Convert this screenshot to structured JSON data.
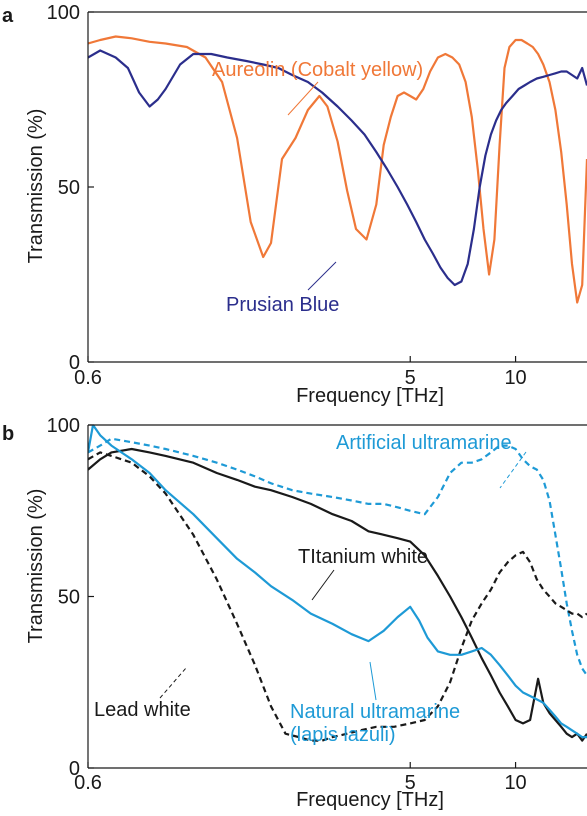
{
  "colors": {
    "orange": "#F07838",
    "navy": "#2B2E8C",
    "blue": "#1E9AD6",
    "black": "#1A1A1A"
  },
  "chart_data": [
    {
      "panel_label": "a",
      "type": "line",
      "xlabel": "Frequency [THz]",
      "ylabel": "Transmission (%)",
      "x_scale": "log",
      "xlim": [
        0.6,
        16
      ],
      "ylim": [
        0,
        100
      ],
      "x_ticks": [
        {
          "value": 0.6,
          "label": "0.6"
        },
        {
          "value": 5,
          "label": "5"
        },
        {
          "value": 10,
          "label": "10"
        }
      ],
      "y_ticks": [
        {
          "value": 0,
          "label": "0"
        },
        {
          "value": 50,
          "label": "50"
        },
        {
          "value": 100,
          "label": "100"
        }
      ],
      "series": [
        {
          "name": "Aureolin (Cobalt yellow)",
          "color": "#F07838",
          "dash": "solid",
          "x": [
            0.6,
            0.65,
            0.72,
            0.8,
            0.9,
            1.0,
            1.15,
            1.3,
            1.45,
            1.6,
            1.75,
            1.9,
            2.0,
            2.15,
            2.35,
            2.55,
            2.75,
            2.9,
            3.1,
            3.3,
            3.5,
            3.75,
            4.0,
            4.2,
            4.4,
            4.6,
            4.8,
            5.0,
            5.2,
            5.45,
            5.7,
            6.0,
            6.3,
            6.6,
            6.9,
            7.2,
            7.5,
            7.8,
            8.1,
            8.4,
            8.7,
            9.0,
            9.3,
            9.6,
            10.0,
            10.4,
            10.8,
            11.2,
            11.6,
            12.0,
            12.5,
            13.0,
            13.5,
            14.0,
            14.5,
            15.0,
            15.5,
            16.0
          ],
          "y": [
            91,
            92,
            93,
            92.5,
            91.5,
            91,
            90,
            87,
            80,
            64,
            40,
            30,
            34,
            58,
            64,
            72,
            76,
            73,
            63,
            49,
            38,
            35,
            45,
            62,
            70,
            76,
            77,
            76,
            75,
            78,
            83,
            87,
            88,
            87,
            85,
            80,
            70,
            55,
            38,
            25,
            35,
            62,
            84,
            90,
            92,
            92,
            91,
            90,
            88,
            85,
            80,
            72,
            60,
            45,
            28,
            17,
            22,
            58
          ]
        },
        {
          "name": "Prusian Blue",
          "color": "#2B2E8C",
          "dash": "solid",
          "x": [
            0.6,
            0.65,
            0.72,
            0.78,
            0.84,
            0.9,
            0.95,
            1.0,
            1.1,
            1.2,
            1.35,
            1.5,
            1.7,
            1.9,
            2.1,
            2.3,
            2.55,
            2.8,
            3.1,
            3.4,
            3.7,
            4.0,
            4.3,
            4.6,
            4.9,
            5.2,
            5.5,
            5.8,
            6.1,
            6.4,
            6.7,
            7.0,
            7.3,
            7.6,
            7.9,
            8.2,
            8.5,
            8.8,
            9.1,
            9.4,
            9.8,
            10.2,
            10.6,
            11.0,
            11.5,
            12.0,
            12.5,
            13.0,
            13.5,
            14.0,
            14.5,
            15.0,
            15.5,
            16.0
          ],
          "y": [
            87,
            89,
            87,
            84,
            77,
            73,
            75,
            78,
            85,
            88,
            88,
            87,
            86,
            85,
            84,
            82,
            80,
            77,
            73,
            69,
            65,
            60,
            55,
            50,
            45,
            40,
            35,
            31,
            27,
            24,
            22,
            23,
            28,
            38,
            50,
            59,
            65,
            69,
            72,
            74,
            76,
            78,
            79,
            80,
            81,
            81.5,
            82,
            82.5,
            83,
            83,
            82,
            81,
            84,
            79
          ]
        }
      ],
      "annotations": [
        {
          "text": "Aureolin (Cobalt yellow)",
          "color": "#F07838"
        },
        {
          "text": "Prusian Blue",
          "color": "#2B2E8C"
        }
      ]
    },
    {
      "panel_label": "b",
      "type": "line",
      "xlabel": "Frequency [THz]",
      "ylabel": "Transmission (%)",
      "x_scale": "log",
      "xlim": [
        0.6,
        16
      ],
      "ylim": [
        0,
        100
      ],
      "x_ticks": [
        {
          "value": 0.6,
          "label": "0.6"
        },
        {
          "value": 5,
          "label": "5"
        },
        {
          "value": 10,
          "label": "10"
        }
      ],
      "y_ticks": [
        {
          "value": 0,
          "label": "0"
        },
        {
          "value": 50,
          "label": "50"
        },
        {
          "value": 100,
          "label": "100"
        }
      ],
      "series": [
        {
          "name": "Artificial ultramarine",
          "color": "#1E9AD6",
          "dash": "dashed",
          "x": [
            0.6,
            0.65,
            0.7,
            0.8,
            0.9,
            1.0,
            1.2,
            1.4,
            1.6,
            1.8,
            2.0,
            2.3,
            2.6,
            3.0,
            3.4,
            3.8,
            4.2,
            4.6,
            5.0,
            5.5,
            6.0,
            6.5,
            7.0,
            7.5,
            8.0,
            8.5,
            9.0,
            9.5,
            10.0,
            10.5,
            11.0,
            11.5,
            12.0,
            12.5,
            13.0,
            13.5,
            14.0,
            14.5,
            15.0,
            15.5,
            16.0
          ],
          "y": [
            92,
            94,
            96,
            95,
            94,
            93,
            91,
            89,
            87,
            85,
            83,
            81,
            80,
            79,
            78,
            77,
            77,
            76,
            75,
            74,
            79,
            86,
            89,
            89,
            90,
            92,
            94,
            94,
            93,
            90,
            88,
            87,
            84,
            78,
            68,
            58,
            48,
            40,
            33,
            29,
            27
          ]
        },
        {
          "name": "Tltanium white",
          "color": "#1A1A1A",
          "dash": "solid",
          "x": [
            0.6,
            0.65,
            0.7,
            0.8,
            0.9,
            1.0,
            1.2,
            1.4,
            1.6,
            1.8,
            2.0,
            2.3,
            2.6,
            3.0,
            3.4,
            3.8,
            4.2,
            4.6,
            5.0,
            5.5,
            6.0,
            6.5,
            7.0,
            7.5,
            8.0,
            8.5,
            9.0,
            9.5,
            10.0,
            10.5,
            11.0,
            11.3,
            11.6,
            12.0,
            12.5,
            13.0,
            13.5,
            14.0,
            14.5,
            15.0,
            15.5,
            16.0
          ],
          "y": [
            87,
            90,
            92,
            93,
            92,
            91,
            89,
            86,
            84,
            82,
            81,
            79,
            77,
            74,
            72,
            69,
            68,
            67,
            66,
            62,
            56,
            50,
            44,
            38,
            32,
            27,
            22,
            18,
            14,
            13,
            14,
            20,
            26,
            19,
            16,
            14,
            12,
            10,
            9,
            10,
            8,
            10
          ]
        },
        {
          "name": "Lead white",
          "color": "#1A1A1A",
          "dash": "dashed",
          "x": [
            0.6,
            0.65,
            0.7,
            0.8,
            0.9,
            1.0,
            1.2,
            1.4,
            1.6,
            1.8,
            2.0,
            2.2,
            2.4,
            2.6,
            2.8,
            3.0,
            3.3,
            3.6,
            4.0,
            4.5,
            5.0,
            5.5,
            6.0,
            6.5,
            7.0,
            7.5,
            8.0,
            8.5,
            9.0,
            9.5,
            10.0,
            10.5,
            11.0,
            11.5,
            12.0,
            12.5,
            13.0,
            13.5,
            14.0,
            14.5,
            15.0,
            15.5,
            16.0
          ],
          "y": [
            90,
            92,
            91,
            89,
            85,
            80,
            68,
            55,
            42,
            30,
            18,
            10,
            9,
            8,
            8,
            9,
            10,
            11,
            12,
            12,
            13,
            14,
            18,
            25,
            35,
            43,
            48,
            52,
            57,
            60,
            62,
            63,
            60,
            55,
            52,
            50,
            48,
            47,
            46,
            45,
            45,
            44,
            45
          ]
        },
        {
          "name": "Natural ultramarine (lapis lazuli)",
          "color": "#1E9AD6",
          "dash": "solid",
          "x": [
            0.6,
            0.62,
            0.65,
            0.7,
            0.8,
            0.9,
            1.0,
            1.2,
            1.4,
            1.6,
            1.8,
            2.0,
            2.3,
            2.6,
            3.0,
            3.4,
            3.8,
            4.2,
            4.6,
            5.0,
            5.3,
            5.6,
            6.0,
            6.5,
            7.0,
            7.5,
            8.0,
            8.5,
            9.0,
            9.5,
            10.0,
            10.5,
            11.0,
            11.5,
            12.0,
            12.5,
            13.0,
            13.5,
            14.0,
            14.5,
            15.0,
            15.5,
            16.0
          ],
          "y": [
            92,
            100,
            97,
            94,
            90,
            86,
            81,
            74,
            67,
            61,
            57,
            53,
            49,
            45,
            42,
            39,
            37,
            40,
            44,
            47,
            43,
            38,
            34,
            33,
            33,
            34,
            35,
            33,
            30,
            27,
            24,
            22,
            21,
            20,
            19,
            17,
            15,
            13,
            12,
            11,
            10,
            9,
            9
          ]
        }
      ],
      "annotations": [
        {
          "text": "Artificial ultramarine",
          "color": "#1E9AD6"
        },
        {
          "text": "TItanium white",
          "color": "#1A1A1A"
        },
        {
          "text": "Lead white",
          "color": "#1A1A1A"
        },
        {
          "text": "Natural ultramarine",
          "color": "#1E9AD6"
        },
        {
          "text": "(lapis lazuli)",
          "color": "#1E9AD6"
        }
      ]
    }
  ]
}
